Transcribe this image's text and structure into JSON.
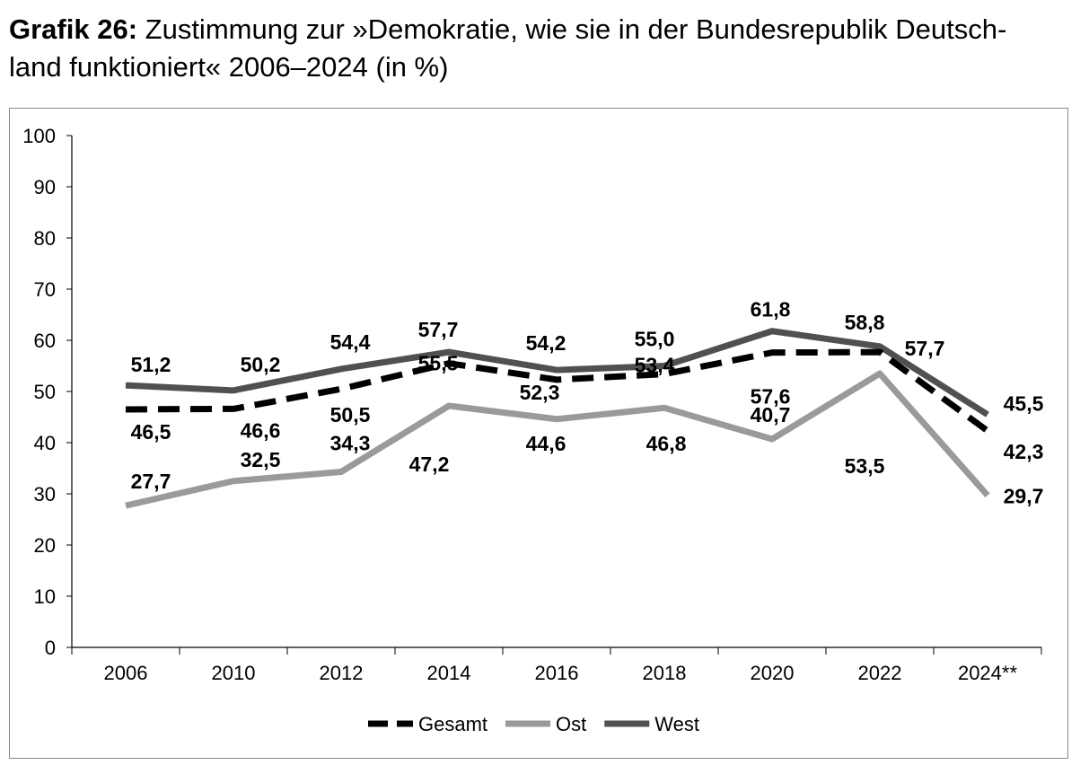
{
  "title": {
    "prefix": "Grafik 26:",
    "line1": "Zustimmung zur »Demokratie, wie sie in der Bundesrepublik Deutsch-",
    "line2": "land funktioniert« 2006–2024 (in %)"
  },
  "chart_data": {
    "type": "line",
    "categories": [
      "2006",
      "2010",
      "2012",
      "2014",
      "2016",
      "2018",
      "2020",
      "2022",
      "2024**"
    ],
    "ylim": [
      0,
      100
    ],
    "yticks": [
      0,
      10,
      20,
      30,
      40,
      50,
      60,
      70,
      80,
      90,
      100
    ],
    "grid": false,
    "legend": "bottom",
    "series": [
      {
        "name": "Gesamt",
        "color": "#000000",
        "style": "dashed",
        "values": [
          46.5,
          46.6,
          50.5,
          55.5,
          52.3,
          53.4,
          57.6,
          57.7,
          42.3
        ],
        "labels": [
          "46,5",
          "46,6",
          "50,5",
          "55,5",
          "52,3",
          "53,4",
          "57,6",
          "57,7",
          "42,3"
        ]
      },
      {
        "name": "Ost",
        "color": "#9a9a9a",
        "style": "solid",
        "values": [
          27.7,
          32.5,
          34.3,
          47.2,
          44.6,
          46.8,
          40.7,
          53.5,
          29.7
        ],
        "labels": [
          "27,7",
          "32,5",
          "34,3",
          "47,2",
          "44,6",
          "46,8",
          "40,7",
          "53,5",
          "29,7"
        ]
      },
      {
        "name": "West",
        "color": "#505050",
        "style": "solid",
        "values": [
          51.2,
          50.2,
          54.4,
          57.7,
          54.2,
          55.0,
          61.8,
          58.8,
          45.5
        ],
        "labels": [
          "51,2",
          "50,2",
          "54,4",
          "57,7",
          "54,2",
          "55,0",
          "61,8",
          "58,8",
          "45,5"
        ]
      }
    ]
  }
}
